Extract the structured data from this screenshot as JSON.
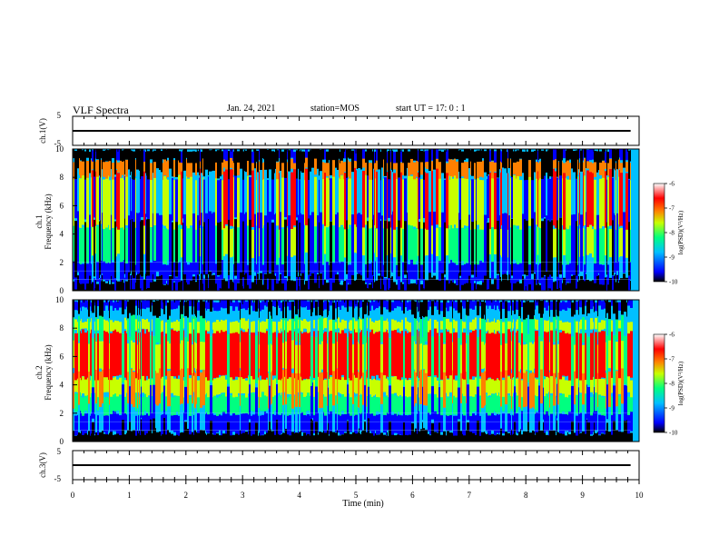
{
  "header": {
    "title": "VLF Spectra",
    "date": "Jan. 24, 2021",
    "station": "station=MOS",
    "start": "start  UT =   17: 0  : 1"
  },
  "chart_data": [
    {
      "type": "line",
      "ylabel": "ch.1(V)",
      "ylim": [
        -5,
        5
      ],
      "yticks": [
        "5",
        "-5"
      ],
      "series": [
        {
          "x": [
            0,
            9.85
          ],
          "values": [
            0,
            0
          ]
        }
      ]
    },
    {
      "type": "heatmap",
      "ylabel_1": "ch.1",
      "ylabel_2": "Frequency (kHz)",
      "ylim": [
        0,
        10
      ],
      "yticks": [
        "0",
        "2",
        "4",
        "6",
        "8",
        "10"
      ],
      "colorbar": {
        "label": "log(PSD)(V²/Hz)",
        "range": [
          -10,
          -6
        ],
        "ticks": [
          "-6",
          "-7",
          "-8",
          "-9",
          "-10"
        ]
      }
    },
    {
      "type": "heatmap",
      "ylabel_1": "ch.2",
      "ylabel_2": "Frequency (kHz)",
      "ylim": [
        0,
        10
      ],
      "yticks": [
        "0",
        "2",
        "4",
        "6",
        "8",
        "10"
      ],
      "colorbar": {
        "label": "log(PSD)(V²/Hz)",
        "range": [
          -10,
          -6
        ],
        "ticks": [
          "-6",
          "-7",
          "-8",
          "-9",
          "-10"
        ]
      }
    },
    {
      "type": "line",
      "ylabel": "ch.3(V)",
      "ylim": [
        -5,
        5
      ],
      "yticks": [
        "5",
        "-5"
      ],
      "series": [
        {
          "x": [
            0,
            9.85
          ],
          "values": [
            0,
            0
          ]
        }
      ]
    }
  ],
  "xaxis": {
    "label": "Time  (min)",
    "range": [
      0,
      10
    ],
    "ticks": [
      "0",
      "1",
      "2",
      "3",
      "4",
      "5",
      "6",
      "7",
      "8",
      "9",
      "10"
    ]
  },
  "colors": {
    "scale": [
      "#000000",
      "#0000ff",
      "#00c0ff",
      "#00ff80",
      "#c8ff00",
      "#ff8000",
      "#ff0000",
      "#ffffff"
    ]
  }
}
